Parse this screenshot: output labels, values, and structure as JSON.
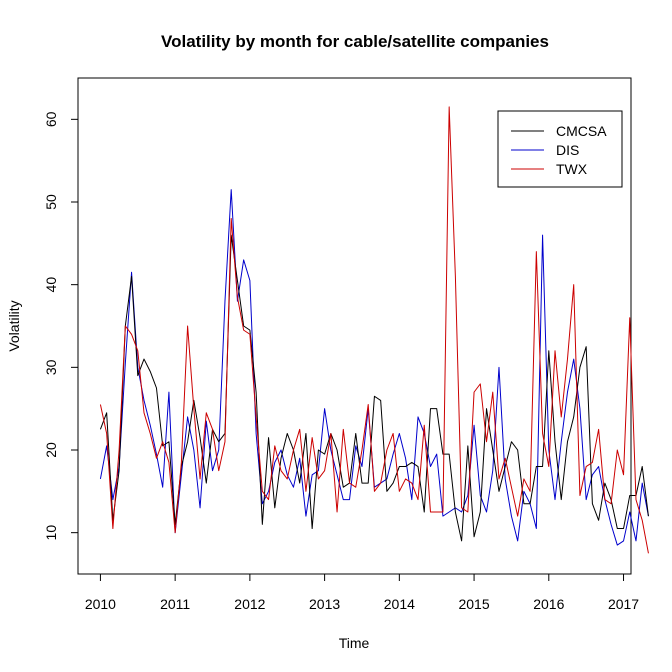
{
  "chart_data": {
    "type": "line",
    "title": "Volatility by month for cable/satellite companies",
    "xlabel": "Time",
    "ylabel": "Volatility",
    "xlim": [
      2009.7,
      2017.1
    ],
    "ylim": [
      5,
      65
    ],
    "xticks": [
      2010,
      2011,
      2012,
      2013,
      2014,
      2015,
      2016,
      2017
    ],
    "yticks": [
      10,
      20,
      30,
      40,
      50,
      60
    ],
    "grid": false,
    "legend_position": "top-right",
    "x_start": 2010,
    "x_step": 0.0833333,
    "series": [
      {
        "name": "CMCSA",
        "color": "#000000",
        "values": [
          22.5,
          24.5,
          11.5,
          17.5,
          35.0,
          41.0,
          29.0,
          31.0,
          29.5,
          27.5,
          20.5,
          21.0,
          11.0,
          18.0,
          21.0,
          26.0,
          21.5,
          16.0,
          22.5,
          21.0,
          22.0,
          46.0,
          40.5,
          35.0,
          34.5,
          27.0,
          11.0,
          21.5,
          13.0,
          19.0,
          22.0,
          20.0,
          16.0,
          22.0,
          10.5,
          20.0,
          19.5,
          22.0,
          20.0,
          15.5,
          16.0,
          22.0,
          16.0,
          16.0,
          26.5,
          26.0,
          15.0,
          16.0,
          18.0,
          18.0,
          18.5,
          18.0,
          12.5,
          25.0,
          25.0,
          19.5,
          19.5,
          12.5,
          9.0,
          20.5,
          9.5,
          12.5,
          25.0,
          20.0,
          15.0,
          18.0,
          21.0,
          20.0,
          13.5,
          13.5,
          18.0,
          18.0,
          32.0,
          21.0,
          14.0,
          21.0,
          24.0,
          30.0,
          32.5,
          13.5,
          11.5,
          16.0,
          14.0,
          10.5,
          10.5,
          14.5,
          14.5,
          18.0,
          12.0
        ]
      },
      {
        "name": "DIS",
        "color": "#0000cc",
        "values": [
          16.5,
          20.5,
          14.0,
          18.0,
          30.5,
          41.5,
          30.0,
          26.0,
          23.0,
          19.5,
          15.5,
          27.0,
          10.0,
          17.0,
          24.0,
          20.0,
          13.0,
          23.5,
          17.5,
          20.0,
          38.0,
          51.5,
          38.0,
          43.0,
          40.5,
          22.0,
          13.5,
          15.0,
          18.5,
          20.0,
          17.0,
          15.5,
          19.0,
          12.0,
          17.0,
          17.5,
          25.0,
          20.0,
          17.0,
          14.0,
          14.0,
          20.5,
          18.0,
          25.0,
          15.5,
          16.0,
          16.5,
          19.5,
          22.0,
          19.0,
          14.0,
          24.0,
          22.0,
          18.0,
          19.5,
          12.0,
          12.5,
          13.0,
          12.5,
          14.5,
          23.0,
          14.5,
          12.5,
          17.5,
          30.0,
          16.5,
          12.0,
          9.0,
          15.0,
          13.5,
          10.5,
          46.0,
          20.0,
          14.0,
          21.0,
          27.0,
          31.0,
          25.0,
          14.0,
          17.0,
          18.0,
          14.0,
          11.0,
          8.5,
          9.0,
          12.5,
          9.0,
          16.0,
          12.0
        ]
      },
      {
        "name": "TWX",
        "color": "#cc0000",
        "values": [
          25.5,
          22.0,
          10.5,
          20.0,
          35.0,
          34.0,
          32.0,
          24.5,
          22.0,
          19.0,
          21.0,
          18.5,
          10.0,
          18.5,
          35.0,
          25.0,
          16.5,
          24.5,
          22.5,
          17.5,
          21.0,
          48.0,
          38.5,
          34.5,
          34.0,
          24.0,
          15.0,
          14.0,
          20.5,
          17.5,
          16.5,
          20.0,
          22.5,
          15.0,
          21.5,
          16.5,
          17.5,
          22.0,
          12.5,
          22.5,
          16.0,
          15.5,
          20.0,
          25.5,
          15.0,
          16.0,
          20.0,
          22.0,
          15.0,
          16.5,
          16.0,
          14.0,
          23.0,
          12.5,
          12.5,
          12.5,
          61.5,
          41.0,
          13.0,
          12.5,
          27.0,
          28.0,
          21.0,
          27.0,
          16.5,
          19.0,
          15.5,
          12.0,
          16.5,
          15.0,
          44.0,
          22.0,
          18.0,
          32.0,
          24.0,
          31.0,
          40.0,
          14.5,
          18.0,
          18.5,
          22.5,
          14.0,
          13.5,
          20.0,
          17.0,
          36.0,
          14.0,
          11.5,
          7.5
        ]
      }
    ]
  }
}
